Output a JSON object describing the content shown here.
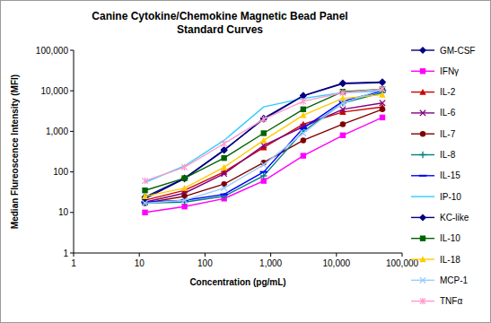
{
  "chart_data": {
    "type": "line",
    "title": "Canine Cytokine/Chemokine Magnetic Bead Panel\nStandard Curves",
    "x_label": "Concentration (pg/mL)",
    "y_label": "Median Flureoscence Intensity (MFI)",
    "log": true,
    "grid": false,
    "legend": "right",
    "xlim": [
      1,
      100000
    ],
    "ylim": [
      1,
      100000
    ],
    "xticks": [
      1,
      10,
      100,
      {
        "value": 1000,
        "label": "1,000"
      },
      {
        "value": 10000,
        "label": "10,000"
      },
      {
        "value": 100000,
        "label": "100,000"
      }
    ],
    "yticks": [
      1,
      10,
      100,
      {
        "value": 1000,
        "label": "1,000"
      },
      {
        "value": 10000,
        "label": "10,000"
      },
      {
        "value": 100000,
        "label": "100,000"
      }
    ],
    "x": [
      12.2,
      48.8,
      195,
      781,
      3125,
      12500,
      50000
    ],
    "series": [
      {
        "name": "GM-CSF",
        "color": "#000080",
        "marker": "diamond",
        "values": [
          24,
          70,
          350,
          2000,
          7500,
          15000,
          16000
        ]
      },
      {
        "name": "IFNγ",
        "color": "#ff00ff",
        "marker": "square",
        "values": [
          10,
          14,
          22,
          60,
          250,
          800,
          2200
        ]
      },
      {
        "name": "IL-2",
        "color": "#cc0000",
        "marker": "triangle",
        "values": [
          20,
          35,
          100,
          400,
          1500,
          3000,
          4000
        ]
      },
      {
        "name": "IL-6",
        "color": "#800080",
        "marker": "x",
        "values": [
          18,
          30,
          90,
          450,
          1300,
          3500,
          5000
        ]
      },
      {
        "name": "IL-7",
        "color": "#800000",
        "marker": "circle",
        "values": [
          17,
          25,
          50,
          170,
          600,
          1500,
          3500
        ]
      },
      {
        "name": "IL-8",
        "color": "#008080",
        "marker": "plus",
        "values": [
          17,
          18,
          25,
          80,
          1000,
          5000,
          9000
        ]
      },
      {
        "name": "IL-15",
        "color": "#0000ff",
        "marker": "dash",
        "values": [
          18,
          20,
          28,
          100,
          1200,
          5500,
          10000
        ]
      },
      {
        "name": "IP-10",
        "color": "#33ccff",
        "marker": "none",
        "values": [
          55,
          140,
          600,
          4000,
          6500,
          9000,
          10000
        ]
      },
      {
        "name": "KC-like",
        "color": "#000080",
        "marker": "diamond",
        "values": [
          22,
          68,
          340,
          2100,
          7600,
          15500,
          16500
        ]
      },
      {
        "name": "IL-10",
        "color": "#006400",
        "marker": "square",
        "values": [
          35,
          70,
          220,
          900,
          3500,
          9500,
          11000
        ]
      },
      {
        "name": "IL-18",
        "color": "#ffcc00",
        "marker": "triangle",
        "values": [
          25,
          40,
          130,
          600,
          2500,
          6500,
          8000
        ]
      },
      {
        "name": "MCP-1",
        "color": "#99ccff",
        "marker": "x",
        "values": [
          17,
          20,
          40,
          150,
          900,
          5000,
          11000
        ]
      },
      {
        "name": "TNFα",
        "color": "#ff99cc",
        "marker": "star",
        "values": [
          60,
          130,
          500,
          2000,
          5500,
          9000,
          11000
        ]
      }
    ]
  }
}
